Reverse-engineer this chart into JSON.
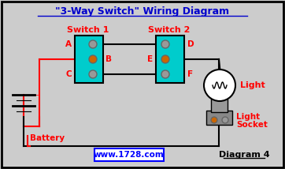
{
  "title": "\"3-Way Switch\" Wiring Diagram",
  "title_color": "#0000CC",
  "bg_color": "#CCCCCC",
  "border_color": "#000000",
  "switch1_label": "Switch 1",
  "switch2_label": "Switch 2",
  "switch_color": "#00CCCC",
  "wire_color": "#000000",
  "red_wire_color": "#FF0000",
  "label_color": "#FF0000",
  "terminal_color_gray": "#999999",
  "terminal_color_orange": "#CC6600",
  "battery_label": "Battery",
  "website": "www.1728.com",
  "diagram_label": "Diagram 4",
  "light_label": "Light",
  "socket_label_1": "Light",
  "socket_label_2": "Socket"
}
